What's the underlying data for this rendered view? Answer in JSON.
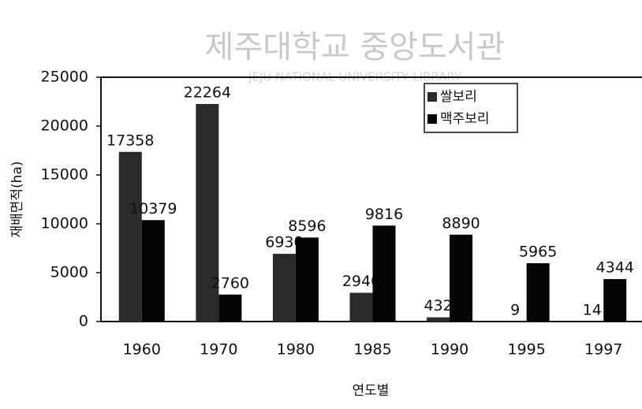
{
  "chart_data": {
    "type": "bar",
    "watermark": "제주대학교 중앙도서관",
    "watermark_sub": "JEJU NATIONAL UNIVERSITY LIBRARY",
    "ylabel": "재배면적(ha)",
    "xlabel": "연도별",
    "categories": [
      "1960",
      "1970",
      "1980",
      "1985",
      "1990",
      "1995",
      "1997"
    ],
    "series": [
      {
        "name": "쌀보리",
        "color": "#2a2a2a",
        "values": [
          17358,
          22264,
          6930,
          2940,
          432,
          9,
          14
        ]
      },
      {
        "name": "맥주보리",
        "color": "#050505",
        "values": [
          10379,
          2760,
          8596,
          9816,
          8890,
          5965,
          4344
        ]
      }
    ],
    "ylim": [
      0,
      25000
    ],
    "yticks": [
      0,
      5000,
      10000,
      15000,
      20000,
      25000
    ],
    "legend": "upper right"
  }
}
